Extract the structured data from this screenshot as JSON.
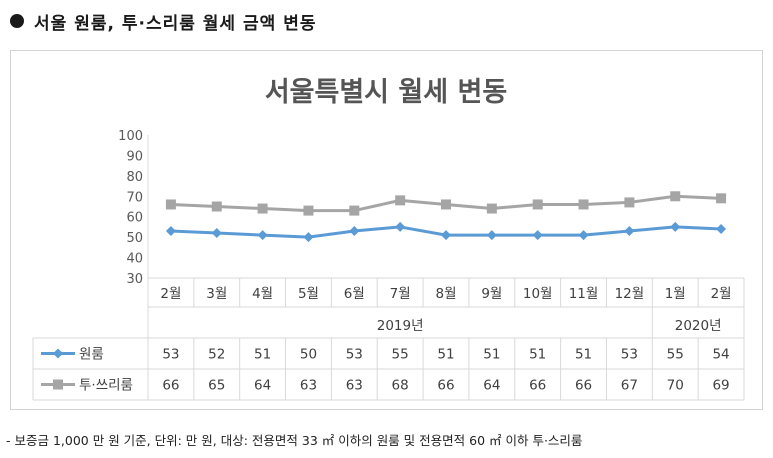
{
  "header": {
    "title": "서울 원룸, 투·스리룸 월세 금액 변동"
  },
  "footnote": "- 보증금 1,000 만 원 기준, 단위: 만 원, 대상: 전용면적 33 ㎡ 이하의 원룸 및 전용면적 60 ㎡ 이하 투·스리룸",
  "chart_data": {
    "type": "line",
    "title": "서울특별시 월세 변동",
    "categories": [
      "2월",
      "3월",
      "4월",
      "5월",
      "6월",
      "7월",
      "8월",
      "9월",
      "10월",
      "11월",
      "12월",
      "1월",
      "2월"
    ],
    "year_groups": [
      {
        "label": "2019년",
        "start": 0,
        "end": 10
      },
      {
        "label": "2020년",
        "start": 11,
        "end": 12
      }
    ],
    "ylim": [
      30,
      100
    ],
    "yticks": [
      30,
      40,
      50,
      60,
      70,
      80,
      90,
      100
    ],
    "grid": false,
    "series": [
      {
        "name": "원룸",
        "color": "#5b9bd5",
        "marker": "diamond",
        "values": [
          53,
          52,
          51,
          50,
          53,
          55,
          51,
          51,
          51,
          51,
          53,
          55,
          54
        ]
      },
      {
        "name": "투·쓰리룸",
        "color": "#a5a5a5",
        "marker": "square",
        "values": [
          66,
          65,
          64,
          63,
          63,
          68,
          66,
          64,
          66,
          66,
          67,
          70,
          69
        ]
      }
    ],
    "data_table": true
  }
}
